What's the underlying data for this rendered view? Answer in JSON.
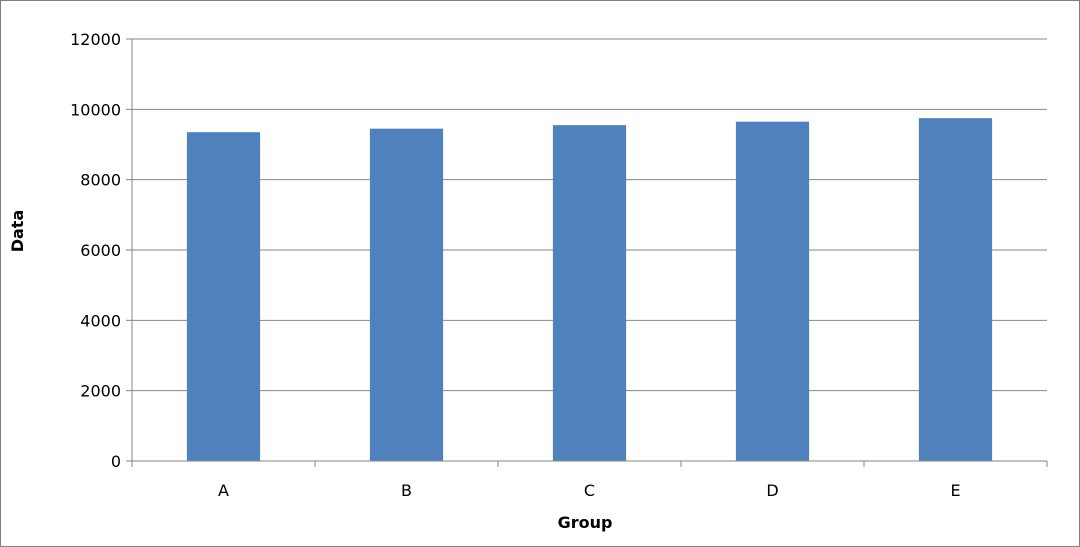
{
  "chart_data": {
    "type": "bar",
    "categories": [
      "A",
      "B",
      "C",
      "D",
      "E"
    ],
    "values": [
      9350,
      9450,
      9550,
      9650,
      9750
    ],
    "title": "",
    "xlabel": "Group",
    "ylabel": "Data",
    "ylim": [
      0,
      12000
    ],
    "yticks": [
      0,
      2000,
      4000,
      6000,
      8000,
      10000,
      12000
    ],
    "grid": "horizontal",
    "legend": "none",
    "bar_color": "#4f81bd",
    "grid_color": "#868686",
    "axis_color": "#868686"
  }
}
